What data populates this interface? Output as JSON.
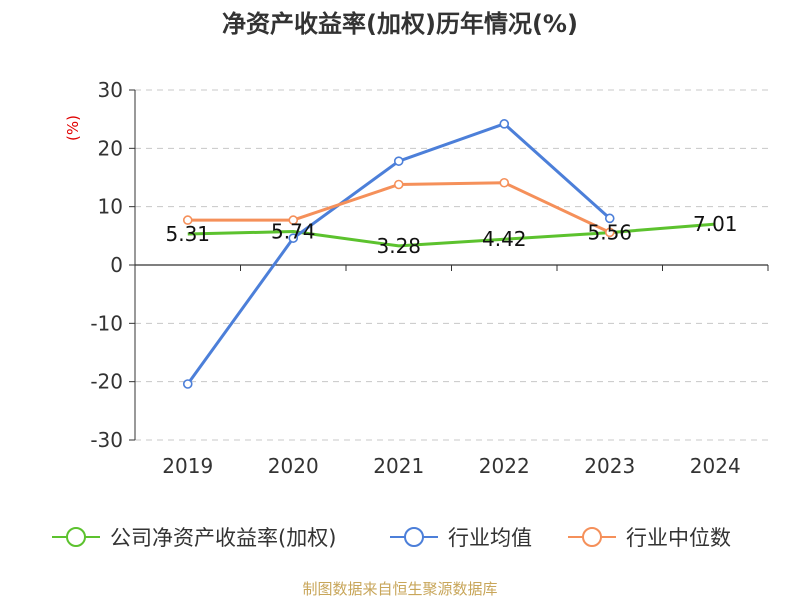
{
  "chart_data": {
    "type": "line",
    "title": "净资产收益率(加权)历年情况(%)",
    "ylabel": "(%)",
    "xlabel": "",
    "categories": [
      "2019",
      "2020",
      "2021",
      "2022",
      "2023",
      "2024"
    ],
    "ylim": [
      -30,
      30
    ],
    "yticks": [
      30,
      20,
      10,
      0,
      -10,
      -20,
      -30
    ],
    "grid": true,
    "legend_position": "bottom",
    "series": [
      {
        "name": "公司净资产收益率(加权)",
        "color": "#5cc22e",
        "values": [
          5.31,
          5.74,
          3.28,
          4.42,
          5.56,
          7.01
        ],
        "labels": [
          "5.31",
          "5.74",
          "3.28",
          "4.42",
          "5.56",
          "7.01"
        ]
      },
      {
        "name": "行业均值",
        "color": "#4c7fd9",
        "values": [
          -20.4,
          4.6,
          17.8,
          24.2,
          8.0,
          null
        ]
      },
      {
        "name": "行业中位数",
        "color": "#f5905a",
        "values": [
          7.7,
          7.7,
          13.8,
          14.1,
          5.6,
          null
        ]
      }
    ]
  },
  "source": "制图数据来自恒生聚源数据库"
}
